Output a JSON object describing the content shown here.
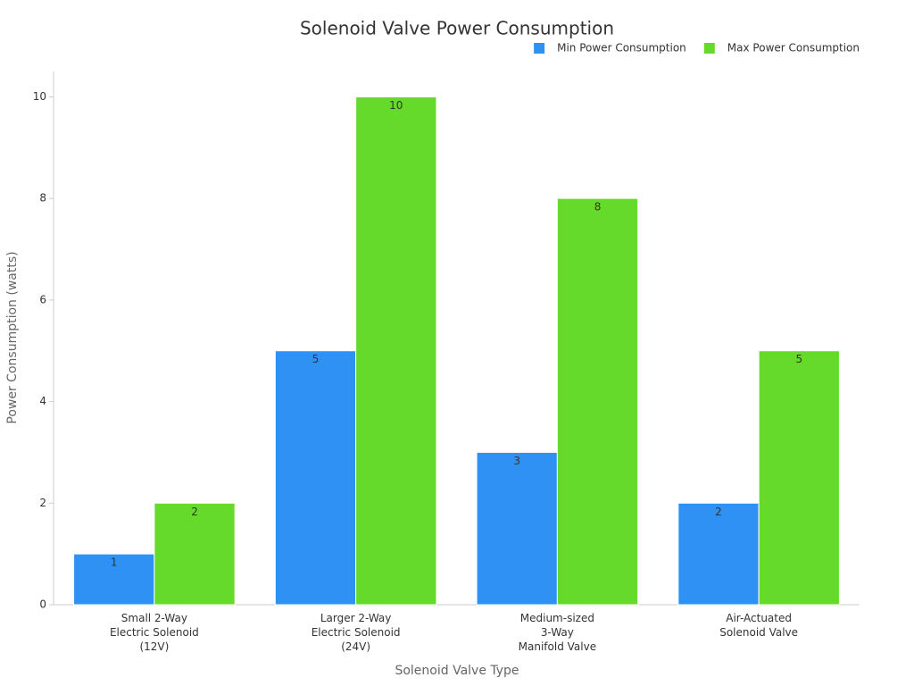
{
  "chart_data": {
    "type": "bar",
    "title": "Solenoid Valve Power Consumption",
    "x_label": "Solenoid Valve Type",
    "y_label": "Power Consumption (watts)",
    "categories": [
      "Small 2-Way\nElectric Solenoid\n(12V)",
      "Larger 2-Way\nElectric Solenoid\n(24V)",
      "Medium-sized\n3-Way\nManifold Valve",
      "Air-Actuated\nSolenoid Valve"
    ],
    "series": [
      {
        "name": "Min Power Consumption",
        "color": "#3091f5",
        "values": [
          1,
          5,
          3,
          2
        ]
      },
      {
        "name": "Max Power Consumption",
        "color": "#66da2a",
        "values": [
          2,
          10,
          8,
          5
        ]
      }
    ],
    "ylim": [
      0,
      10.5
    ],
    "yticks": [
      0,
      2,
      4,
      6,
      8,
      10
    ],
    "grid": false,
    "legend": "top-right"
  }
}
